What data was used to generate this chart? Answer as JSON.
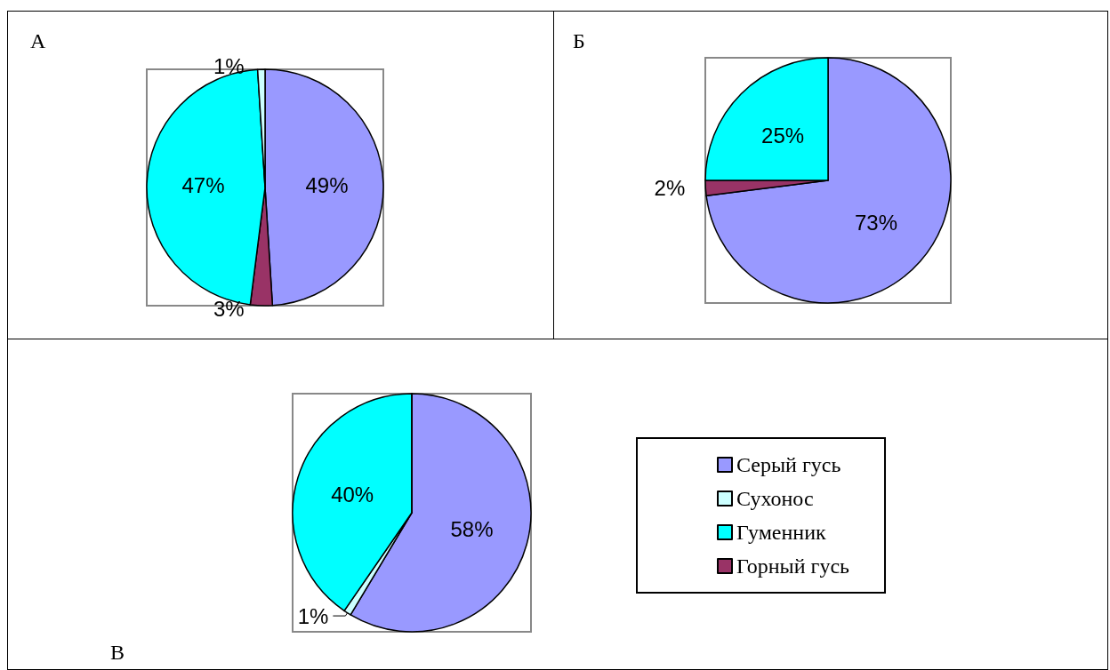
{
  "chart_data": [
    {
      "type": "pie",
      "title": "А",
      "categories": [
        null,
        null,
        null,
        null
      ],
      "values": [
        49,
        3,
        47,
        1
      ],
      "colors": [
        "#9999ff",
        "#993366",
        "#00ffff",
        "#ccffff"
      ],
      "value_labels": [
        "49%",
        "3%",
        "47%",
        "1%"
      ],
      "legend": false
    },
    {
      "type": "pie",
      "title": "Б",
      "categories": [
        null,
        null,
        null
      ],
      "values": [
        73,
        2,
        25
      ],
      "colors": [
        "#9999ff",
        "#993366",
        "#00ffff"
      ],
      "value_labels": [
        "73%",
        "2%",
        "25%"
      ],
      "legend": false
    },
    {
      "type": "pie",
      "title": "В",
      "categories": [
        "Серый гусь",
        "Сухонос",
        "Гуменник",
        "Горный гусь"
      ],
      "values": [
        58,
        1,
        40,
        0
      ],
      "colors": [
        "#9999ff",
        "#ccffff",
        "#00ffff",
        "#993366"
      ],
      "value_labels": [
        "58%",
        "1%",
        "40%",
        null
      ],
      "legend": "right"
    }
  ]
}
